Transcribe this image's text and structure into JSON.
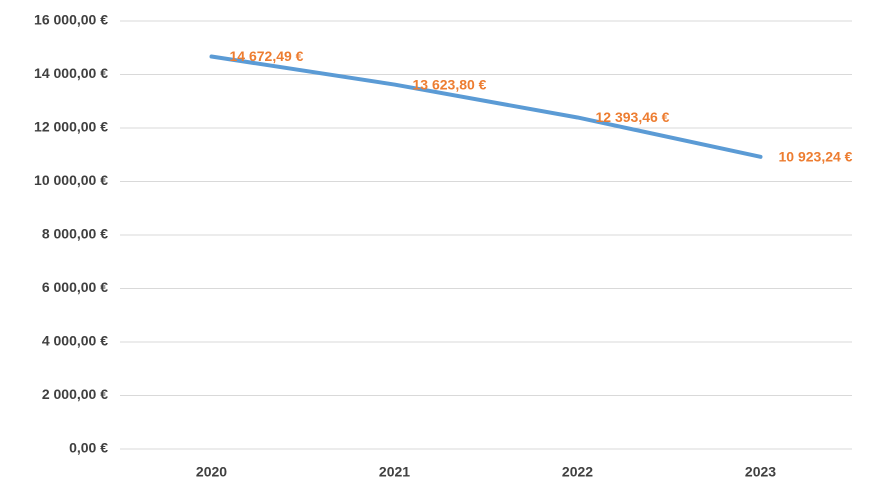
{
  "chart_data": {
    "type": "line",
    "categories": [
      "2020",
      "2021",
      "2022",
      "2023"
    ],
    "series": [
      {
        "name": null,
        "color": "#5b9bd5",
        "values": [
          14672.49,
          13623.8,
          12393.46,
          10923.24
        ],
        "value_labels": [
          "14 672,49 €",
          "13 623,80 €",
          "12 393,46 €",
          "10 923,24 €"
        ],
        "label_color": "#ed7d31"
      }
    ],
    "ylim": [
      0,
      16000
    ],
    "yticks": [
      {
        "value": 0,
        "label": "0,00 €"
      },
      {
        "value": 2000,
        "label": "2 000,00 €"
      },
      {
        "value": 4000,
        "label": "4 000,00 €"
      },
      {
        "value": 6000,
        "label": "6 000,00 €"
      },
      {
        "value": 8000,
        "label": "8 000,00 €"
      },
      {
        "value": 10000,
        "label": "10 000,00 €"
      },
      {
        "value": 12000,
        "label": "12 000,00 €"
      },
      {
        "value": 14000,
        "label": "14 000,00 €"
      },
      {
        "value": 16000,
        "label": "16 000,00 €"
      }
    ],
    "grid": true
  }
}
